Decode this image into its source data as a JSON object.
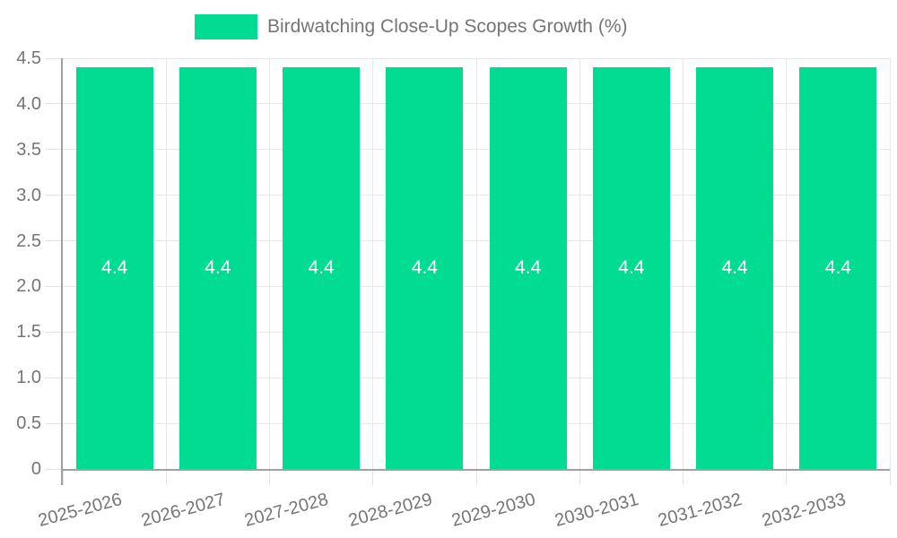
{
  "chart_data": {
    "type": "bar",
    "title": "",
    "legend_label": "Birdwatching Close-Up Scopes Growth (%)",
    "legend_position": "top-center",
    "categories": [
      "2025-2026",
      "2026-2027",
      "2027-2028",
      "2028-2029",
      "2029-2030",
      "2030-2031",
      "2031-2032",
      "2032-2033"
    ],
    "series": [
      {
        "name": "Birdwatching Close-Up Scopes Growth (%)",
        "values": [
          4.4,
          4.4,
          4.4,
          4.4,
          4.4,
          4.4,
          4.4,
          4.4
        ]
      }
    ],
    "value_labels": [
      "4.4",
      "4.4",
      "4.4",
      "4.4",
      "4.4",
      "4.4",
      "4.4",
      "4.4"
    ],
    "xlabel": "",
    "ylabel": "",
    "ylim": [
      0,
      4.5
    ],
    "ytick_values": [
      0,
      0.5,
      1.0,
      1.5,
      2.0,
      2.5,
      3.0,
      3.5,
      4.0,
      4.5
    ],
    "ytick_labels": [
      "0",
      "0.5",
      "1.0",
      "1.5",
      "2.0",
      "2.5",
      "3.0",
      "3.5",
      "4.0",
      "4.5"
    ],
    "grid": true,
    "xlabel_rotation_deg": -15,
    "colors": {
      "bar": "#00dd93",
      "value_label": "#ffffff",
      "axis_text": "#757575",
      "legend_text": "#757575",
      "gridline": "#e8e8e8",
      "tick": "#e2e2e2",
      "axis_line": "#a0a0a0",
      "background": "#ffffff"
    }
  }
}
